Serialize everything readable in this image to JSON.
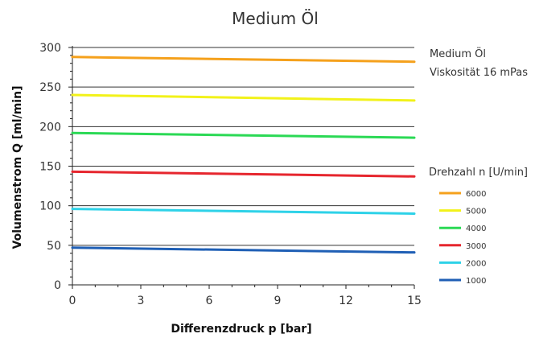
{
  "chart_data": {
    "type": "line",
    "title": "Medium Öl",
    "xlabel": "Differenzdruck p [bar]",
    "ylabel": "Volumenstrom Q [ml/min]",
    "xlim": [
      0,
      15
    ],
    "ylim": [
      0,
      300
    ],
    "x_ticks": [
      0,
      3,
      6,
      9,
      12,
      15
    ],
    "y_ticks": [
      0,
      50,
      100,
      150,
      200,
      250,
      300
    ],
    "grid": "horizontal",
    "info": [
      "Medium Öl",
      "Viskosität 16 mPas"
    ],
    "legend_title": "Drehzahl n [U/min]",
    "legend_position": "right",
    "x": [
      0,
      15
    ],
    "series": [
      {
        "name": "6000",
        "color": "#F5A11C",
        "values": [
          288,
          282
        ]
      },
      {
        "name": "5000",
        "color": "#F2F21A",
        "values": [
          240,
          233
        ]
      },
      {
        "name": "4000",
        "color": "#2BD955",
        "values": [
          192,
          186
        ]
      },
      {
        "name": "3000",
        "color": "#E6262E",
        "values": [
          143,
          137
        ]
      },
      {
        "name": "2000",
        "color": "#2ED2E8",
        "values": [
          96,
          90
        ]
      },
      {
        "name": "1000",
        "color": "#1F5FB5",
        "values": [
          47,
          41
        ]
      }
    ]
  }
}
